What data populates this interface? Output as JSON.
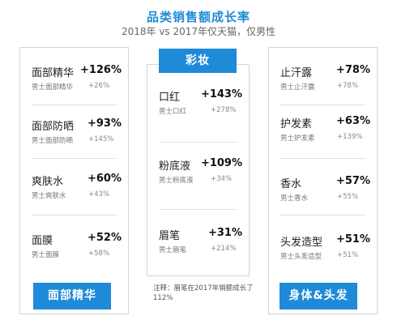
{
  "title": "品类销售额成长率",
  "subtitle": "2018年 vs 2017年仅天猫，仅男性",
  "left": {
    "label": "面部精华",
    "items": [
      {
        "name": "面部精华",
        "pct": "+126%",
        "sub": "男士面部精华",
        "subpct": "+26%"
      },
      {
        "name": "面部防晒",
        "pct": "+93%",
        "sub": "男士面部防晒",
        "subpct": "+145%"
      },
      {
        "name": "爽肤水",
        "pct": "+60%",
        "sub": "男士爽肤水",
        "subpct": "+43%"
      },
      {
        "name": "面膜",
        "pct": "+52%",
        "sub": "男士面膜",
        "subpct": "+58%"
      }
    ]
  },
  "middle": {
    "label": "彩妆",
    "items": [
      {
        "name": "口红",
        "pct": "+143%",
        "sub": "男士口红",
        "subpct": "+278%"
      },
      {
        "name": "粉底液",
        "pct": "+109%",
        "sub": "男士粉底液",
        "subpct": "+34%"
      },
      {
        "name": "眉笔",
        "pct": "+31%",
        "sub": "男士眉笔",
        "subpct": "+214%"
      }
    ],
    "note": "注释：眉笔在2017年销额成长了112%"
  },
  "right": {
    "label": "身体&头发",
    "items": [
      {
        "name": "止汗露",
        "pct": "+78%",
        "sub": "男士止汗露",
        "subpct": "+78%"
      },
      {
        "name": "护发素",
        "pct": "+63%",
        "sub": "男士护发素",
        "subpct": "+139%"
      },
      {
        "name": "香水",
        "pct": "+57%",
        "sub": "男士香水",
        "subpct": "+55%"
      },
      {
        "name": "头发造型",
        "pct": "+51%",
        "sub": "男士头发造型",
        "subpct": "+51%"
      }
    ]
  }
}
